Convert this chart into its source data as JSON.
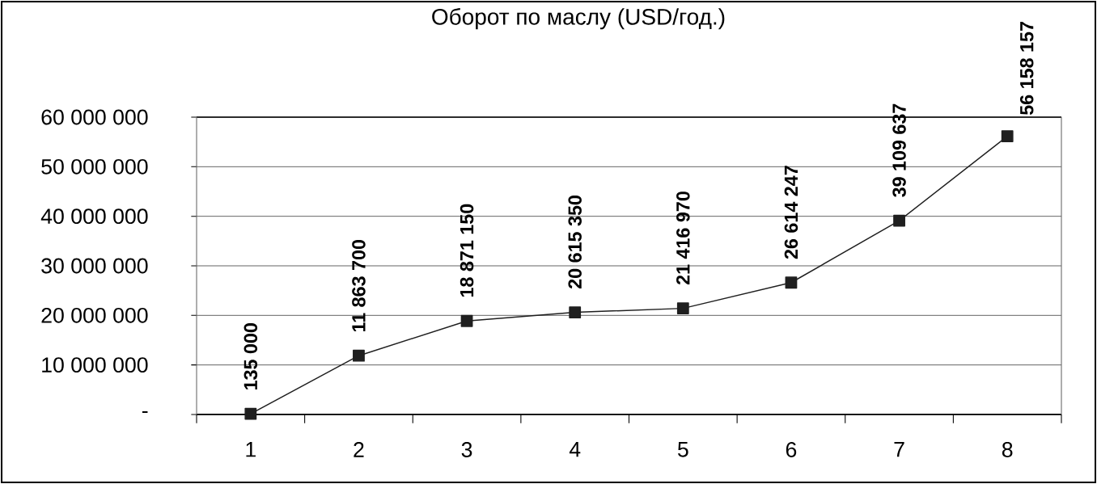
{
  "chart_data": {
    "type": "line",
    "title": "Оборот  по маслу (USD/год.)",
    "categories": [
      "1",
      "2",
      "3",
      "4",
      "5",
      "6",
      "7",
      "8"
    ],
    "series": [
      {
        "color": "#1f1f1f",
        "values": [
          135000,
          11863700,
          18871150,
          20615350,
          21416970,
          26614247,
          39109637,
          56158157
        ],
        "value_labels": [
          "135 000",
          "11 863 700",
          "18 871 150",
          "20 615 350",
          "21 416 970",
          "26 614 247",
          "39 109 637",
          "56 158 157"
        ]
      }
    ],
    "ylim": [
      0,
      60000000
    ],
    "yticks": [
      {
        "value": 0,
        "label": "-"
      },
      {
        "value": 10000000,
        "label": "10 000 000"
      },
      {
        "value": 20000000,
        "label": "20 000 000"
      },
      {
        "value": 30000000,
        "label": "30 000 000"
      },
      {
        "value": 40000000,
        "label": "40 000 000"
      },
      {
        "value": 50000000,
        "label": "50 000 000"
      },
      {
        "value": 60000000,
        "label": "60 000 000"
      }
    ],
    "grid": "y",
    "marker": "square",
    "line_style": "solid"
  }
}
